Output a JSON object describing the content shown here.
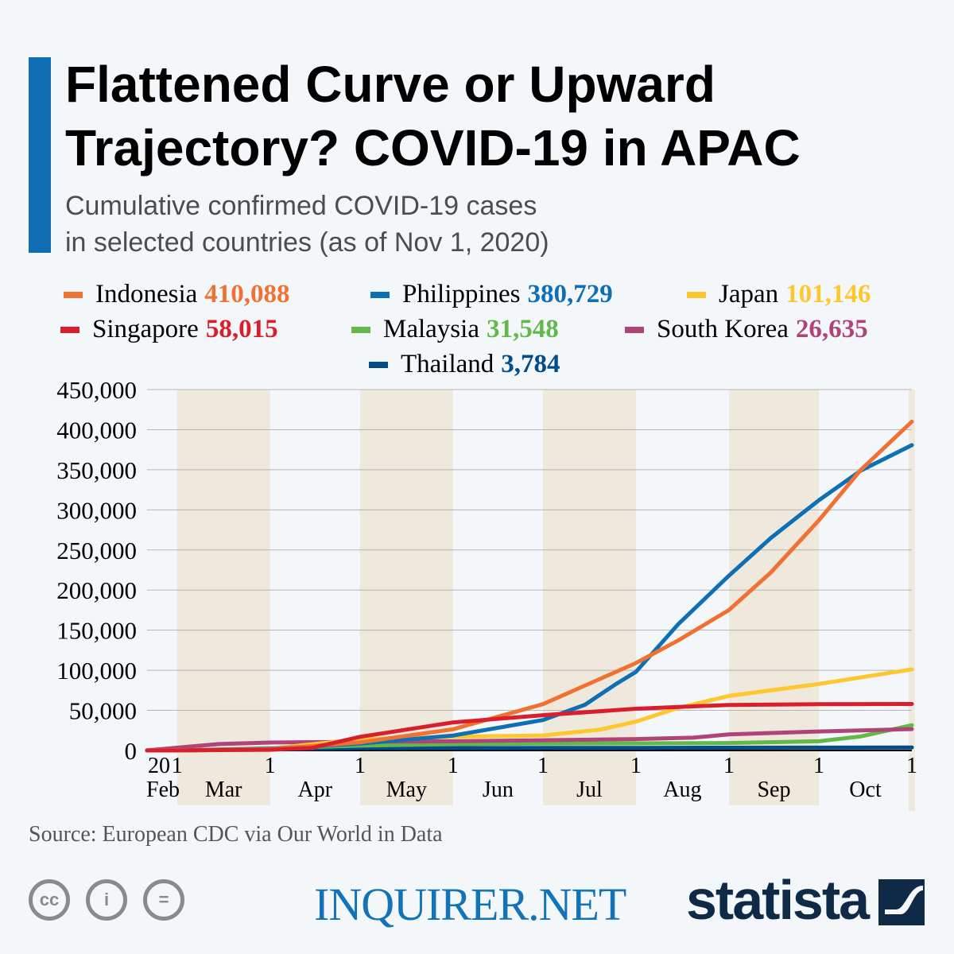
{
  "header": {
    "title": "Flattened Curve or Upward Trajectory? COVID-19 in APAC",
    "subtitle_line1": "Cumulative confirmed COVID-19 cases",
    "subtitle_line2": "in selected countries (as of Nov 1, 2020)"
  },
  "legend": [
    {
      "name": "Indonesia",
      "value": "410,088",
      "color": "#f07232"
    },
    {
      "name": "Philippines",
      "value": "380,729",
      "color": "#0f6fb5"
    },
    {
      "name": "Japan",
      "value": "101,146",
      "color": "#fdc72d"
    },
    {
      "name": "Singapore",
      "value": "58,015",
      "color": "#da1f2c"
    },
    {
      "name": "Malaysia",
      "value": "31,548",
      "color": "#62b949"
    },
    {
      "name": "South Korea",
      "value": "26,635",
      "color": "#b04479"
    },
    {
      "name": "Thailand",
      "value": "3,784",
      "color": "#004d8a"
    }
  ],
  "chart_data": {
    "type": "line",
    "title": "Flattened Curve or Upward Trajectory? COVID-19 in APAC",
    "subtitle": "Cumulative confirmed COVID-19 cases in selected countries (as of Nov 1, 2020)",
    "xlim": [
      "2020-02-20",
      "2020-11-01"
    ],
    "ylim": [
      0,
      450000
    ],
    "yticks": [
      0,
      50000,
      100000,
      150000,
      200000,
      250000,
      300000,
      350000,
      400000,
      450000
    ],
    "ytick_labels": [
      "0",
      "50,000",
      "100,000",
      "150,000",
      "200,000",
      "250,000",
      "300,000",
      "350,000",
      "400,000",
      "450,000"
    ],
    "xticks": [
      {
        "date": "2020-02-20",
        "day": "20",
        "month": "Feb"
      },
      {
        "date": "2020-03-01",
        "day": "1",
        "month": "Mar"
      },
      {
        "date": "2020-04-01",
        "day": "1",
        "month": "Apr"
      },
      {
        "date": "2020-05-01",
        "day": "1",
        "month": "May"
      },
      {
        "date": "2020-06-01",
        "day": "1",
        "month": "Jun"
      },
      {
        "date": "2020-07-01",
        "day": "1",
        "month": "Jul"
      },
      {
        "date": "2020-08-01",
        "day": "1",
        "month": "Aug"
      },
      {
        "date": "2020-09-01",
        "day": "1",
        "month": "Sep"
      },
      {
        "date": "2020-10-01",
        "day": "1",
        "month": "Oct"
      },
      {
        "date": "2020-11-01",
        "day": "1",
        "month": ""
      }
    ],
    "grid": true,
    "shaded_months": [
      "Mar",
      "May",
      "Jul",
      "Sep",
      "Nov"
    ],
    "legend_position": "top",
    "series": [
      {
        "name": "Indonesia",
        "color": "#f07232",
        "points": [
          [
            "2020-02-20",
            0
          ],
          [
            "2020-03-01",
            0
          ],
          [
            "2020-04-01",
            1500
          ],
          [
            "2020-05-01",
            10100
          ],
          [
            "2020-06-01",
            26500
          ],
          [
            "2020-07-01",
            57800
          ],
          [
            "2020-08-01",
            109000
          ],
          [
            "2020-08-15",
            137000
          ],
          [
            "2020-09-01",
            175000
          ],
          [
            "2020-09-15",
            222000
          ],
          [
            "2020-10-01",
            287000
          ],
          [
            "2020-10-15",
            350000
          ],
          [
            "2020-11-01",
            410088
          ]
        ]
      },
      {
        "name": "Philippines",
        "color": "#0f6fb5",
        "points": [
          [
            "2020-02-20",
            3
          ],
          [
            "2020-03-01",
            3
          ],
          [
            "2020-04-01",
            2300
          ],
          [
            "2020-05-01",
            8500
          ],
          [
            "2020-06-01",
            18600
          ],
          [
            "2020-07-01",
            38000
          ],
          [
            "2020-07-15",
            57000
          ],
          [
            "2020-07-25",
            82000
          ],
          [
            "2020-08-01",
            98000
          ],
          [
            "2020-08-15",
            157000
          ],
          [
            "2020-09-01",
            218000
          ],
          [
            "2020-09-15",
            265000
          ],
          [
            "2020-10-01",
            312000
          ],
          [
            "2020-10-15",
            349000
          ],
          [
            "2020-11-01",
            380729
          ]
        ]
      },
      {
        "name": "Japan",
        "color": "#fdc72d",
        "points": [
          [
            "2020-02-20",
            100
          ],
          [
            "2020-03-01",
            250
          ],
          [
            "2020-04-01",
            2300
          ],
          [
            "2020-05-01",
            14000
          ],
          [
            "2020-06-01",
            17000
          ],
          [
            "2020-07-01",
            18700
          ],
          [
            "2020-07-20",
            26000
          ],
          [
            "2020-08-01",
            36000
          ],
          [
            "2020-08-15",
            53000
          ],
          [
            "2020-09-01",
            68000
          ],
          [
            "2020-10-01",
            83000
          ],
          [
            "2020-11-01",
            101146
          ]
        ]
      },
      {
        "name": "Singapore",
        "color": "#da1f2c",
        "points": [
          [
            "2020-02-20",
            80
          ],
          [
            "2020-03-01",
            100
          ],
          [
            "2020-04-01",
            900
          ],
          [
            "2020-04-15",
            3300
          ],
          [
            "2020-05-01",
            17000
          ],
          [
            "2020-06-01",
            35000
          ],
          [
            "2020-07-01",
            44000
          ],
          [
            "2020-08-01",
            52000
          ],
          [
            "2020-09-01",
            56800
          ],
          [
            "2020-10-01",
            57800
          ],
          [
            "2020-11-01",
            58015
          ]
        ]
      },
      {
        "name": "Malaysia",
        "color": "#62b949",
        "points": [
          [
            "2020-02-20",
            22
          ],
          [
            "2020-03-01",
            25
          ],
          [
            "2020-04-01",
            2800
          ],
          [
            "2020-05-01",
            6000
          ],
          [
            "2020-06-01",
            7800
          ],
          [
            "2020-07-01",
            8600
          ],
          [
            "2020-08-01",
            8900
          ],
          [
            "2020-09-01",
            9300
          ],
          [
            "2020-10-01",
            11500
          ],
          [
            "2020-10-15",
            17500
          ],
          [
            "2020-11-01",
            31548
          ]
        ]
      },
      {
        "name": "South Korea",
        "color": "#b04479",
        "points": [
          [
            "2020-02-20",
            100
          ],
          [
            "2020-03-01",
            3500
          ],
          [
            "2020-03-15",
            8000
          ],
          [
            "2020-04-01",
            9900
          ],
          [
            "2020-05-01",
            10800
          ],
          [
            "2020-06-01",
            11500
          ],
          [
            "2020-07-01",
            12800
          ],
          [
            "2020-08-01",
            14300
          ],
          [
            "2020-08-20",
            16000
          ],
          [
            "2020-09-01",
            20000
          ],
          [
            "2020-10-01",
            23700
          ],
          [
            "2020-11-01",
            26635
          ]
        ]
      },
      {
        "name": "Thailand",
        "color": "#004d8a",
        "points": [
          [
            "2020-02-20",
            35
          ],
          [
            "2020-03-01",
            42
          ],
          [
            "2020-04-01",
            1600
          ],
          [
            "2020-05-01",
            2950
          ],
          [
            "2020-06-01",
            3080
          ],
          [
            "2020-07-01",
            3170
          ],
          [
            "2020-08-01",
            3310
          ],
          [
            "2020-09-01",
            3420
          ],
          [
            "2020-10-01",
            3580
          ],
          [
            "2020-11-01",
            3784
          ]
        ]
      }
    ]
  },
  "footer": {
    "source": "Source: European CDC via Our World in Data",
    "cc_labels": [
      "cc",
      "i",
      "="
    ],
    "partner": "INQUIRER.NET",
    "brand": "statista"
  }
}
